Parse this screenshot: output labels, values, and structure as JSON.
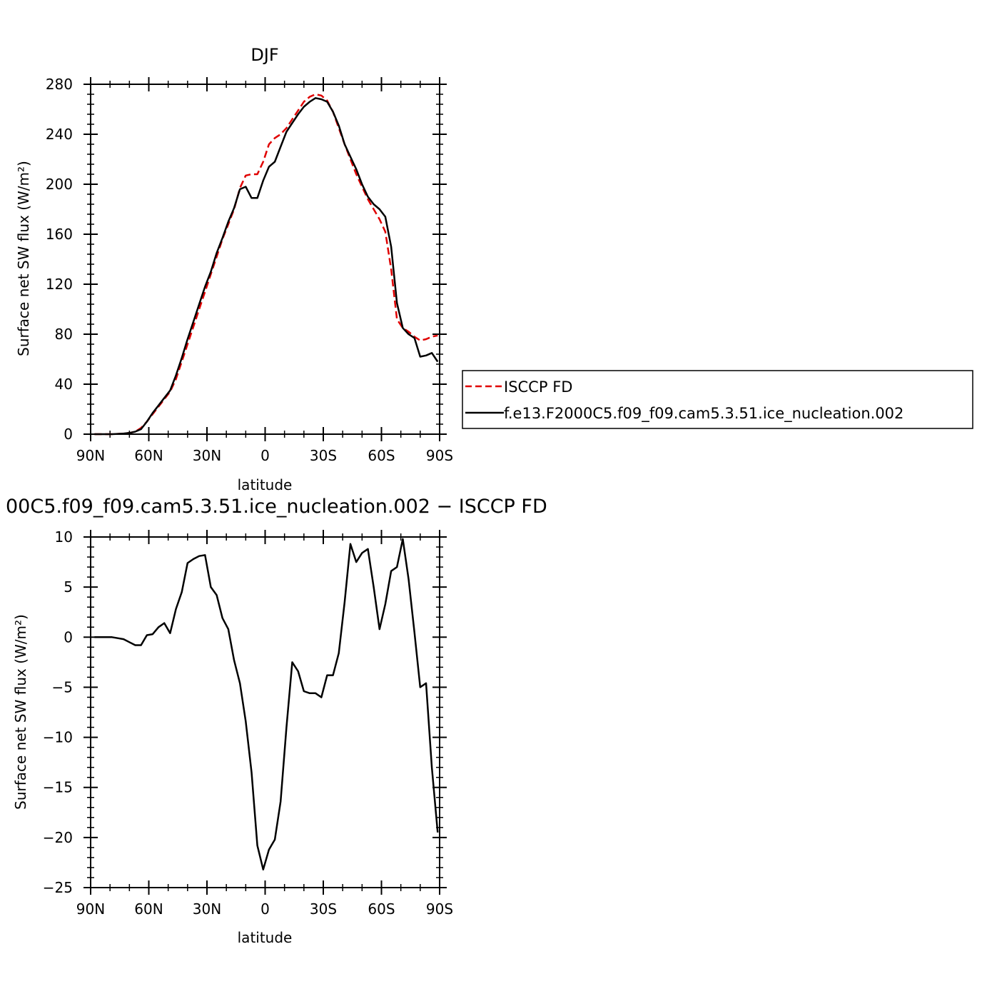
{
  "chart_data": [
    {
      "type": "line",
      "title": "DJF",
      "xlabel": "latitude",
      "ylabel": "Surface net SW flux (W/m²)",
      "xlim": [
        -90,
        90
      ],
      "ylim": [
        0,
        280
      ],
      "x_ticks": [
        -90,
        -60,
        -30,
        0,
        30,
        60,
        90
      ],
      "x_tick_labels": [
        "90N",
        "60N",
        "30N",
        "0",
        "30S",
        "60S",
        "90S"
      ],
      "y_ticks": [
        0,
        40,
        80,
        120,
        160,
        200,
        240,
        280
      ],
      "y_tick_labels": [
        "0",
        "40",
        "80",
        "120",
        "160",
        "200",
        "240",
        "280"
      ],
      "legend": {
        "position": "right",
        "entries": [
          {
            "label": "ISCCP FD",
            "color": "#e00000",
            "dash": "dashed"
          },
          {
            "label": "f.e13.F2000C5.f09_f09.cam5.3.51.ice_nucleation.002",
            "color": "#000000",
            "dash": "solid"
          }
        ]
      },
      "x": [
        -88,
        -85,
        -82,
        -79,
        -76,
        -73,
        -70,
        -67,
        -64,
        -61,
        -58,
        -55,
        -52,
        -49,
        -46,
        -43,
        -40,
        -37,
        -34,
        -31,
        -28,
        -25,
        -22,
        -19,
        -16,
        -13,
        -10,
        -7,
        -4,
        -1,
        2,
        5,
        8,
        11,
        14,
        17,
        20,
        23,
        26,
        29,
        32,
        35,
        38,
        41,
        44,
        47,
        50,
        53,
        56,
        59,
        62,
        65,
        68,
        71,
        74,
        77,
        80,
        83,
        86,
        89
      ],
      "series": [
        {
          "name": "ISCCP FD",
          "color": "#e00000",
          "dash": "dashed",
          "values": [
            0,
            0,
            0,
            0,
            0.2,
            0.5,
            1,
            2,
            5,
            10,
            16,
            22,
            28,
            34,
            44,
            58,
            72,
            86,
            100,
            114,
            128,
            142,
            156,
            168,
            180,
            197,
            207,
            208,
            208,
            218,
            232,
            237,
            240,
            245,
            252,
            259,
            266,
            270,
            272,
            271,
            267,
            258,
            245,
            232,
            220,
            208,
            198,
            188,
            180,
            172,
            162,
            132,
            92,
            85,
            82,
            78,
            75,
            76,
            78,
            79
          ]
        },
        {
          "name": "f.e13.F2000C5.f09_f09.cam5.3.51.ice_nucleation.002",
          "color": "#000000",
          "dash": "solid",
          "values": [
            0,
            0,
            0,
            0,
            0.2,
            0.5,
            1,
            2,
            4,
            10,
            17,
            23,
            29,
            35,
            47,
            61,
            76,
            90,
            104,
            118,
            130,
            145,
            157,
            170,
            181,
            196,
            198,
            189,
            189,
            203,
            214,
            218,
            230,
            242,
            249,
            256,
            262,
            266,
            269,
            268,
            266,
            258,
            247,
            232,
            222,
            212,
            200,
            190,
            184,
            180,
            174,
            150,
            105,
            85,
            80,
            77,
            62,
            63,
            65,
            58
          ]
        }
      ]
    },
    {
      "type": "line",
      "title": "00C5.f09_f09.cam5.3.51.ice_nucleation.002 − ISCCP FD",
      "xlabel": "latitude",
      "ylabel": "Surface net SW flux (W/m²)",
      "xlim": [
        -90,
        90
      ],
      "ylim": [
        -25,
        10
      ],
      "x_ticks": [
        -90,
        -60,
        -30,
        0,
        30,
        60,
        90
      ],
      "x_tick_labels": [
        "90N",
        "60N",
        "30N",
        "0",
        "30S",
        "60S",
        "90S"
      ],
      "y_ticks": [
        -25,
        -20,
        -15,
        -10,
        -5,
        0,
        5,
        10
      ],
      "y_tick_labels": [
        "−25",
        "−20",
        "−15",
        "−10",
        "−5",
        "0",
        "5",
        "10"
      ],
      "x": [
        -88,
        -85,
        -82,
        -79,
        -76,
        -73,
        -70,
        -67,
        -64,
        -61,
        -58,
        -55,
        -52,
        -49,
        -46,
        -43,
        -40,
        -37,
        -34,
        -31,
        -28,
        -25,
        -22,
        -19,
        -16,
        -13,
        -10,
        -7,
        -4,
        -1,
        2,
        5,
        8,
        11,
        14,
        17,
        20,
        23,
        26,
        29,
        32,
        35,
        38,
        41,
        44,
        47,
        50,
        53,
        56,
        59,
        62,
        65,
        68,
        71,
        74,
        77,
        80,
        83,
        86,
        89
      ],
      "series": [
        {
          "name": "",
          "color": "#000000",
          "dash": "solid",
          "values": [
            0,
            0,
            0,
            0,
            -0.1,
            -0.2,
            -0.5,
            -0.8,
            -0.8,
            0.2,
            0.3,
            1.0,
            1.4,
            0.4,
            2.8,
            4.5,
            7.4,
            7.8,
            8.1,
            8.2,
            5.0,
            4.2,
            1.9,
            0.8,
            -2.3,
            -4.6,
            -8.4,
            -13.5,
            -20.8,
            -23.2,
            -21.2,
            -20.2,
            -16.4,
            -9.0,
            -2.5,
            -3.4,
            -5.4,
            -5.6,
            -5.6,
            -6.0,
            -3.8,
            -3.8,
            -1.6,
            3.5,
            9.3,
            7.5,
            8.4,
            8.8,
            5.0,
            0.8,
            3.3,
            6.6,
            7.0,
            9.8,
            5.8,
            0.5,
            -5.0,
            -4.6,
            -13.0,
            -19.5
          ]
        }
      ]
    }
  ]
}
